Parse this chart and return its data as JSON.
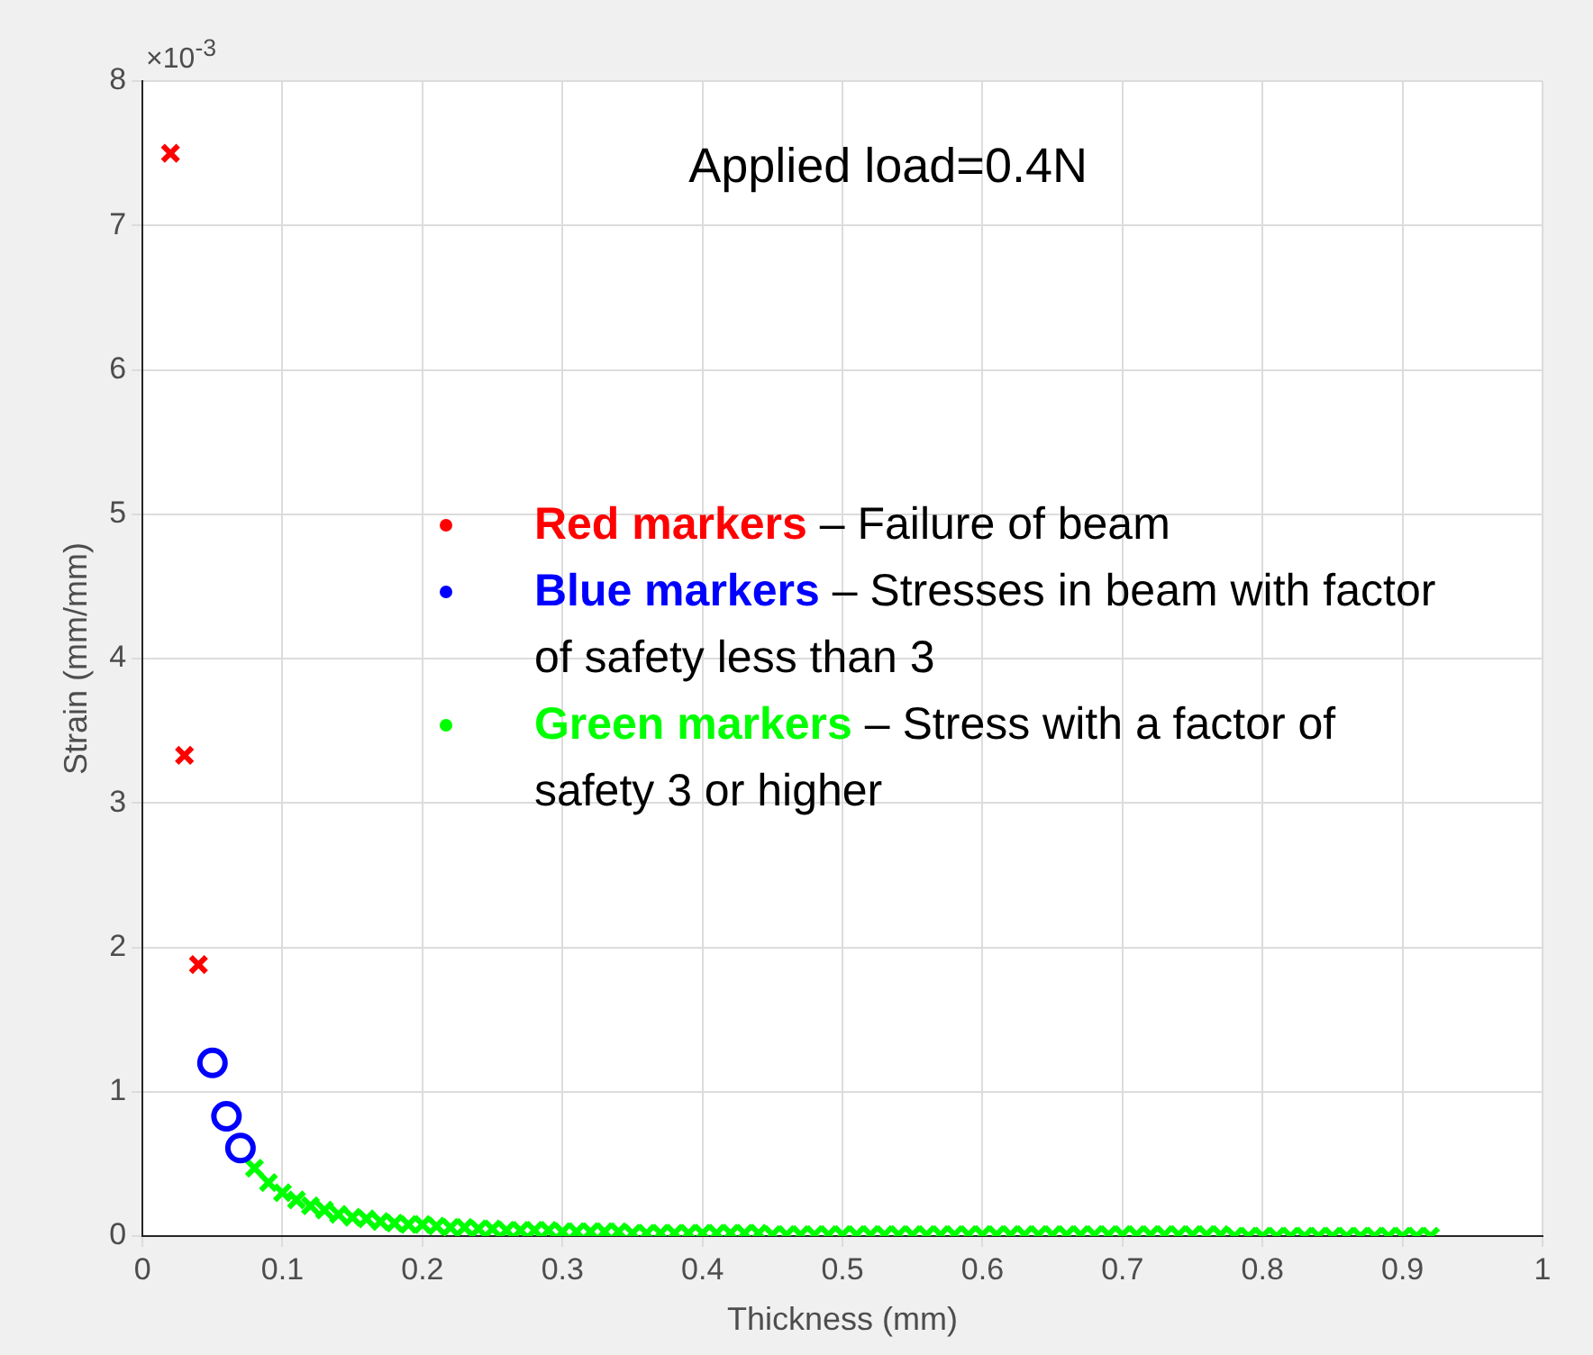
{
  "chart_data": {
    "type": "scatter",
    "xlabel": "Thickness (mm)",
    "ylabel": "Strain (mm/mm)",
    "xlim": [
      0,
      1
    ],
    "xticks": [
      0,
      0.1,
      0.2,
      0.3,
      0.4,
      0.5,
      0.6,
      0.7,
      0.8,
      0.9,
      1
    ],
    "ylim": [
      0,
      8
    ],
    "yticks": [
      0,
      1,
      2,
      3,
      4,
      5,
      6,
      7,
      8
    ],
    "grid": true,
    "legend": "center",
    "annotations": [
      "Applied load=0.4N",
      "×10$^{-3}$",
      "– Failure of beam",
      "– Stresses in beam with factor of safety less than 3",
      "– Stress with a factor of safety 3 or higher"
    ],
    "series": [
      {
        "name": "Red markers",
        "color": "#ff0000",
        "marker": "cross",
        "x": [
          0.02,
          0.03,
          0.04
        ],
        "values": [
          7.5,
          3.33,
          1.88
        ]
      },
      {
        "name": "Blue markers",
        "color": "#0000ff",
        "marker": "circle",
        "x": [
          0.05,
          0.06,
          0.07
        ],
        "values": [
          1.2,
          0.83,
          0.61
        ]
      },
      {
        "name": "Green markers",
        "color": "#00ff00",
        "marker": "cross",
        "x": [
          0.08,
          0.09,
          0.1,
          0.11,
          0.12,
          0.13,
          0.14,
          0.15,
          0.16,
          0.17,
          0.18,
          0.19,
          0.2,
          0.21,
          0.22,
          0.23,
          0.24,
          0.25,
          0.26,
          0.27,
          0.28,
          0.29,
          0.3,
          0.31,
          0.32,
          0.33,
          0.34,
          0.35,
          0.36,
          0.37,
          0.38,
          0.39,
          0.4,
          0.41,
          0.42,
          0.43,
          0.44,
          0.45,
          0.46,
          0.47,
          0.48,
          0.49,
          0.5,
          0.51,
          0.52,
          0.53,
          0.54,
          0.55,
          0.56,
          0.57,
          0.58,
          0.59,
          0.6,
          0.61,
          0.62,
          0.63,
          0.64,
          0.65,
          0.66,
          0.67,
          0.68,
          0.69,
          0.7,
          0.71,
          0.72,
          0.73,
          0.74,
          0.75,
          0.76,
          0.77,
          0.78,
          0.79,
          0.8,
          0.81,
          0.82,
          0.83,
          0.84,
          0.85,
          0.86,
          0.87,
          0.88,
          0.89,
          0.9,
          0.91,
          0.92
        ],
        "values": [
          0.47,
          0.37,
          0.3,
          0.25,
          0.21,
          0.18,
          0.15,
          0.13,
          0.12,
          0.1,
          0.09,
          0.08,
          0.08,
          0.07,
          0.06,
          0.06,
          0.05,
          0.05,
          0.04,
          0.04,
          0.04,
          0.04,
          0.03,
          0.03,
          0.03,
          0.03,
          0.03,
          0.02,
          0.02,
          0.02,
          0.02,
          0.02,
          0.02,
          0.02,
          0.02,
          0.02,
          0.02,
          0.01,
          0.01,
          0.01,
          0.01,
          0.01,
          0.01,
          0.01,
          0.01,
          0.01,
          0.01,
          0.01,
          0.01,
          0.01,
          0.01,
          0.01,
          0.01,
          0.01,
          0.01,
          0.01,
          0.01,
          0.01,
          0.01,
          0.01,
          0.01,
          0.01,
          0.01,
          0.01,
          0.01,
          0.01,
          0.01,
          0.01,
          0.01,
          0.01,
          0,
          0,
          0,
          0,
          0,
          0,
          0,
          0,
          0,
          0,
          0,
          0,
          0,
          0,
          0
        ]
      }
    ]
  }
}
